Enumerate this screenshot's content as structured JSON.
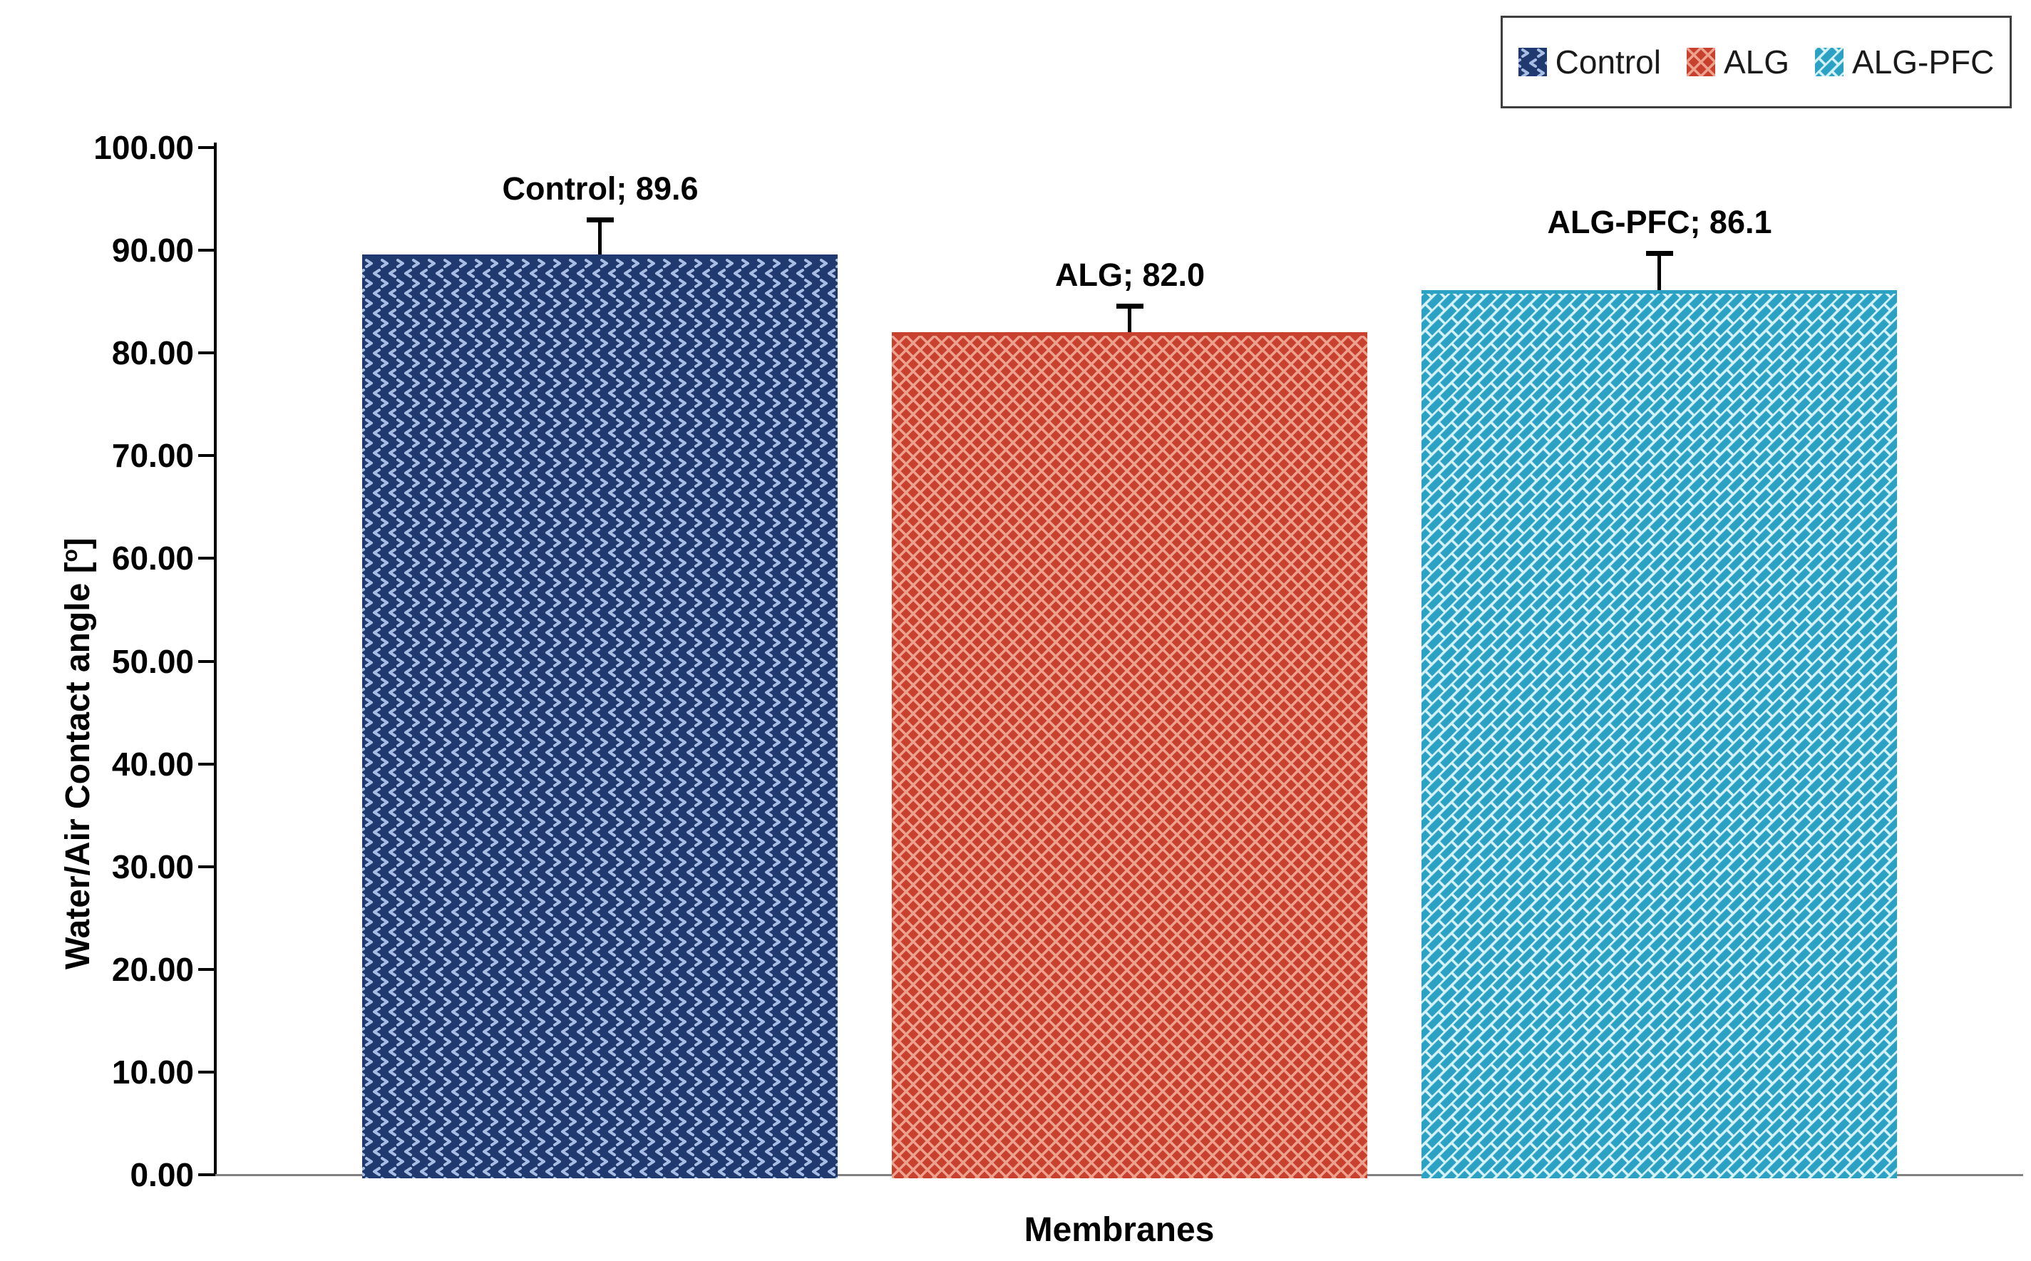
{
  "chart_data": {
    "type": "bar",
    "title": "",
    "categories": [
      "Control",
      "ALG",
      "ALG-PFC"
    ],
    "series": [
      {
        "name": "Water/Air Contact angle",
        "values": [
          89.6,
          82.0,
          86.1
        ],
        "errors_plus": [
          3.4,
          2.6,
          3.6
        ]
      }
    ],
    "bar_point_labels": [
      "Control; 89.6",
      "ALG; 82.0",
      "ALG-PFC; 86.1"
    ],
    "xlabel": "Membranes",
    "ylabel": "Water/Air Contact angle [o]",
    "ylabel_parts": {
      "prefix": "Water/Air Contact angle [",
      "sup": "o",
      "suffix": "]"
    },
    "ylim": [
      0,
      100
    ],
    "ytick_step": 10,
    "yticks": [
      {
        "v": 0,
        "label": "0.00"
      },
      {
        "v": 10,
        "label": "10.00"
      },
      {
        "v": 20,
        "label": "20.00"
      },
      {
        "v": 30,
        "label": "30.00"
      },
      {
        "v": 40,
        "label": "40.00"
      },
      {
        "v": 50,
        "label": "50.00"
      },
      {
        "v": 60,
        "label": "60.00"
      },
      {
        "v": 70,
        "label": "70.00"
      },
      {
        "v": 80,
        "label": "80.00"
      },
      {
        "v": 90,
        "label": "90.00"
      },
      {
        "v": 100,
        "label": "100.00"
      }
    ],
    "grid": false,
    "legend": {
      "position": "top-right",
      "entries": [
        {
          "label": "Control",
          "pattern": "divot"
        },
        {
          "label": "ALG",
          "pattern": "diagonal-crosshatch"
        },
        {
          "label": "ALG-PFC",
          "pattern": "diagonal-weave"
        }
      ]
    },
    "bar_styles": [
      {
        "category": "Control",
        "fill": "#203A6F",
        "pattern": "divot",
        "pattern_color": "#A9BEE4"
      },
      {
        "category": "ALG",
        "fill": "#C8402E",
        "pattern": "diagonal-crosshatch",
        "pattern_color": "#EDA28F"
      },
      {
        "category": "ALG-PFC",
        "fill": "#2BA2C4",
        "pattern": "diagonal-weave",
        "pattern_color": "#D6F2F7"
      }
    ],
    "colors": {
      "axis": "#000000",
      "baseline": "#808080",
      "tick": "#000000",
      "text": "#000000",
      "error_bar": "#000000",
      "legend_border": "#3F3F3F",
      "legend_text": "#1A1A1A"
    }
  }
}
